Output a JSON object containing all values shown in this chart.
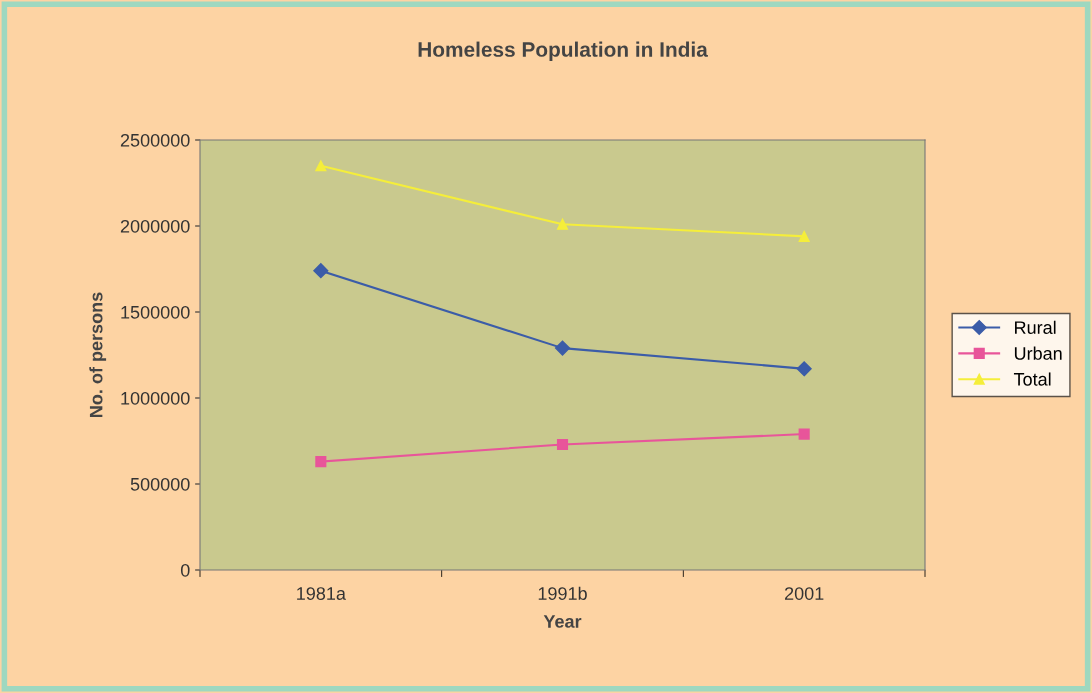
{
  "chart_data": {
    "type": "line",
    "title": "Homeless Population in India",
    "xlabel": "Year",
    "ylabel": "No. of persons",
    "categories": [
      "1981a",
      "1991b",
      "2001"
    ],
    "series": [
      {
        "name": "Rural",
        "color": "#3b5ca8",
        "marker": "diamond",
        "values": [
          1740000,
          1290000,
          1170000
        ]
      },
      {
        "name": "Urban",
        "color": "#e8559a",
        "marker": "square",
        "values": [
          630000,
          730000,
          790000
        ]
      },
      {
        "name": "Total",
        "color": "#f5ee3a",
        "marker": "triangle",
        "values": [
          2350000,
          2010000,
          1940000
        ]
      }
    ],
    "ylim": [
      0,
      2500000
    ],
    "yticks": [
      0,
      500000,
      1000000,
      1500000,
      2000000,
      2500000
    ],
    "grid": false,
    "legend": "right",
    "line_style": "solid"
  }
}
